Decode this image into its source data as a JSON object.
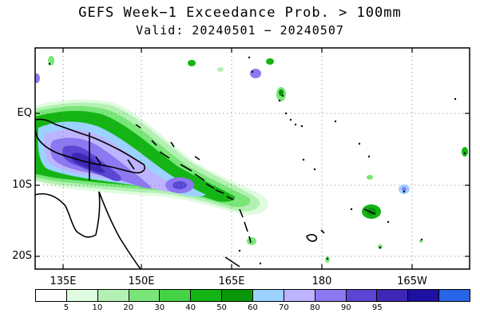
{
  "title": "GEFS Week−1 Exceedance Prob. > 100mm",
  "subtitle": "Valid: 20240501 − 20240507",
  "y_axis": {
    "ticks": [
      "EQ",
      "10S",
      "20S"
    ]
  },
  "x_axis": {
    "ticks": [
      "135E",
      "150E",
      "165E",
      "180",
      "165W"
    ]
  },
  "legend": {
    "colors": [
      "#ffffff",
      "#e0fce0",
      "#b4f0b4",
      "#78e678",
      "#46d246",
      "#14b414",
      "#0a960a",
      "#9bd2ff",
      "#bdb4ff",
      "#8c78f0",
      "#5a46d2",
      "#3c28b4",
      "#1e10a0",
      "#2864e6"
    ],
    "labels": [
      "5",
      "10",
      "20",
      "30",
      "40",
      "50",
      "60",
      "70",
      "80",
      "90",
      "95"
    ]
  },
  "map_extent": {
    "lon": [
      130,
      206
    ],
    "lat": [
      8,
      -24
    ]
  },
  "palette": {
    "coast": "#000000",
    "grid": "#888888"
  }
}
